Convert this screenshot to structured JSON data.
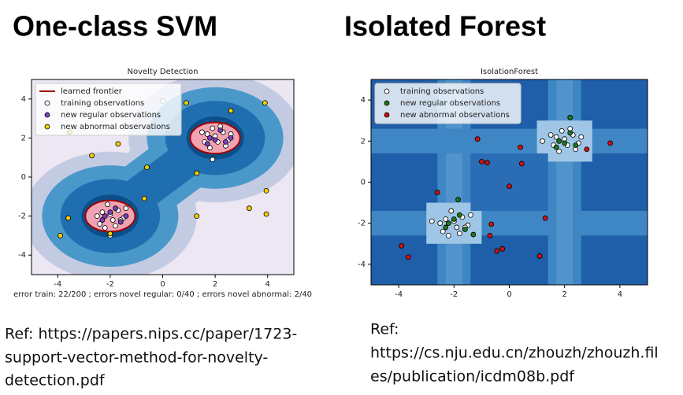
{
  "slide": {
    "left_title": "One-class SVM",
    "right_title": "Isolated Forest",
    "left_ref": [
      "Ref: https://papers.nips.cc/paper/1723-",
      "support-vector-method-for-novelty-",
      "detection.pdf"
    ],
    "right_ref": [
      "Ref:",
      "https://cs.nju.edu.cn/zhouzh/zhouzh.fil",
      "es/publication/icdm08b.pdf"
    ]
  },
  "chart_data": [
    {
      "type": "scatter",
      "title": "Novelty Detection",
      "xlabel": "error train: 22/200 ; errors novel regular: 0/40 ; errors novel abnormal: 2/40",
      "xlim": [
        -5,
        5
      ],
      "ylim": [
        -5,
        5
      ],
      "xticks": [
        -4,
        -2,
        0,
        2,
        4
      ],
      "yticks": [
        -4,
        -2,
        0,
        2,
        4
      ],
      "legend": "upper left",
      "frontier": {
        "name": "learned frontier",
        "color": "#a00000"
      },
      "series": [
        {
          "name": "training observations",
          "color": "#ffffff",
          "x": [
            1.7,
            2.1,
            2.3,
            1.9,
            2.5,
            1.6,
            2.2,
            2.6,
            1.8,
            2.0,
            2.4,
            1.5,
            1.9,
            -2.3,
            -1.9,
            -1.7,
            -2.1,
            -1.5,
            -2.4,
            -1.8,
            -1.4,
            -2.2,
            -2.0,
            -1.6,
            -2.5,
            -2.0,
            0.0
          ],
          "values": [
            2.2,
            1.8,
            2.3,
            2.5,
            1.9,
            1.8,
            2.6,
            2.2,
            1.5,
            2.1,
            1.6,
            2.3,
            0.9,
            -1.8,
            -2.2,
            -1.7,
            -1.4,
            -2.1,
            -2.4,
            -2.5,
            -1.6,
            -2.6,
            -1.9,
            -2.2,
            -2.0,
            -3.0,
            3.9
          ]
        },
        {
          "name": "new regular observations",
          "color": "#7b3fbf",
          "x": [
            1.8,
            2.2,
            2.4,
            1.7,
            2.0,
            2.6,
            -2.2,
            -1.8,
            -1.6,
            -2.3,
            -2.0,
            -1.4
          ],
          "values": [
            2.0,
            2.4,
            1.8,
            1.7,
            1.9,
            2.0,
            -2.0,
            -1.6,
            -2.3,
            -2.2,
            -1.8,
            -2.0
          ]
        },
        {
          "name": "new abnormal observations",
          "color": "#f5d000",
          "x": [
            -3.55,
            -1.7,
            -2.7,
            0.9,
            3.9,
            2.6,
            -0.6,
            1.3,
            -0.7,
            -3.6,
            -3.9,
            -2.0,
            1.3,
            3.3,
            3.95,
            3.95
          ],
          "values": [
            2.3,
            1.7,
            1.1,
            3.8,
            3.8,
            3.4,
            0.5,
            0.2,
            -1.1,
            -2.1,
            -3.0,
            -2.9,
            -2.0,
            -1.6,
            -0.7,
            -1.9
          ]
        }
      ]
    },
    {
      "type": "scatter",
      "title": "IsolationForest",
      "xlim": [
        -5,
        5
      ],
      "ylim": [
        -5,
        5
      ],
      "xticks": [
        -4,
        -2,
        0,
        2,
        4
      ],
      "yticks": [
        -4,
        -2,
        0,
        2,
        4
      ],
      "legend": "upper left",
      "series": [
        {
          "name": "training observations",
          "color": "#ffffff",
          "x": [
            1.7,
            2.1,
            2.3,
            1.9,
            2.5,
            1.6,
            2.2,
            2.6,
            1.8,
            2.0,
            2.4,
            1.5,
            1.2,
            -2.3,
            -1.9,
            -1.7,
            -2.1,
            -1.5,
            -2.4,
            -1.8,
            -1.4,
            -2.2,
            -2.0,
            -1.6,
            -2.5,
            -2.8
          ],
          "values": [
            2.2,
            1.8,
            2.3,
            2.5,
            1.9,
            1.8,
            2.6,
            2.2,
            1.5,
            2.1,
            1.6,
            2.3,
            2.0,
            -1.8,
            -2.2,
            -1.7,
            -1.4,
            -2.1,
            -2.4,
            -2.5,
            -1.6,
            -2.6,
            -1.9,
            -2.2,
            -2.0,
            -1.9
          ]
        },
        {
          "name": "new regular observations",
          "color": "#1a7a1a",
          "x": [
            1.8,
            2.2,
            2.4,
            1.7,
            2.0,
            2.2,
            -2.2,
            -1.8,
            -1.6,
            -2.3,
            -2.0,
            -1.85,
            -1.3
          ],
          "values": [
            2.0,
            2.4,
            1.8,
            1.7,
            1.9,
            3.15,
            -2.0,
            -1.6,
            -2.3,
            -2.2,
            -1.8,
            -0.85,
            -2.55
          ]
        },
        {
          "name": "new abnormal observations",
          "color": "#d01010",
          "x": [
            -1.15,
            -1.0,
            -0.8,
            0.4,
            0.45,
            0.0,
            -2.6,
            -0.65,
            1.3,
            -0.7,
            -0.25,
            -0.45,
            1.1,
            -3.9,
            -3.65,
            3.65,
            2.8
          ],
          "values": [
            2.1,
            1.0,
            0.95,
            1.7,
            0.9,
            -0.2,
            -0.5,
            -2.05,
            -1.75,
            -2.6,
            -3.25,
            -3.35,
            -3.6,
            -3.1,
            -3.65,
            1.9,
            1.6
          ]
        }
      ]
    }
  ]
}
